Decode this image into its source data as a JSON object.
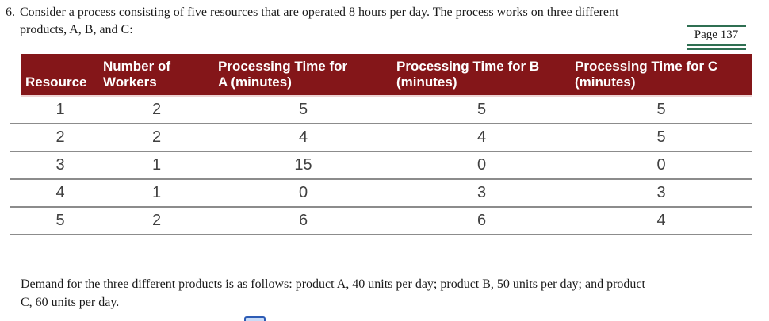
{
  "question": {
    "number": "6.",
    "line1": "Consider a process consisting of five resources that are operated 8 hours per day. The process works on three different",
    "line2": "products, A, B, and C:"
  },
  "page_badge": {
    "label": "Page 137"
  },
  "table": {
    "header": {
      "columns": [
        {
          "lines": [
            "Resource"
          ]
        },
        {
          "lines": [
            "Number of",
            "Workers"
          ]
        },
        {
          "lines": [
            "Processing Time for",
            "A (minutes)"
          ]
        },
        {
          "lines": [
            "Processing Time for B",
            "(minutes)"
          ]
        },
        {
          "lines": [
            "Processing Time for C",
            "(minutes)"
          ]
        }
      ]
    },
    "rows": [
      {
        "resource": "1",
        "workers": "2",
        "a": "5",
        "b": "5",
        "c": "5"
      },
      {
        "resource": "2",
        "workers": "2",
        "a": "4",
        "b": "4",
        "c": "5"
      },
      {
        "resource": "3",
        "workers": "1",
        "a": "15",
        "b": "0",
        "c": "0"
      },
      {
        "resource": "4",
        "workers": "1",
        "a": "0",
        "b": "3",
        "c": "3"
      },
      {
        "resource": "5",
        "workers": "2",
        "a": "6",
        "b": "6",
        "c": "4"
      }
    ]
  },
  "demand": {
    "line1": "Demand for the three different products is as follows: product A, 40 units per day; product B, 50 units per day; and product",
    "line2": "C, 60 units per day."
  },
  "colors": {
    "header_bg": "#841619",
    "header_text": "#ffffff",
    "header_underline": "#eed3d3",
    "row_border": "#8c8c8c",
    "body_text": "#404040",
    "accent_green": "#2f6f52",
    "text_color": "#1a1a1a",
    "blue_border": "#2d5cb5",
    "blue_fill": "#c9dcf7"
  }
}
